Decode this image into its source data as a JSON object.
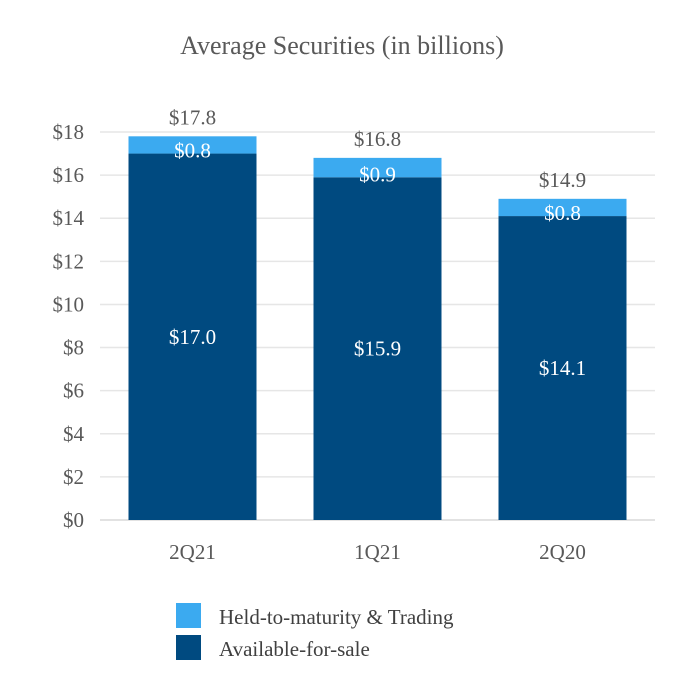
{
  "chart_data": {
    "type": "bar",
    "stacked": true,
    "title": "Average Securities (in billions)",
    "xlabel": "",
    "ylabel": "",
    "categories": [
      "2Q21",
      "1Q21",
      "2Q20"
    ],
    "series": [
      {
        "name": "Available-for-sale",
        "color": "#004a80",
        "values": [
          17.0,
          15.9,
          14.1
        ],
        "labels": [
          "$17.0",
          "$15.9",
          "$14.1"
        ]
      },
      {
        "name": "Held-to-maturity & Trading",
        "color": "#3baaf0",
        "values": [
          0.8,
          0.9,
          0.8
        ],
        "labels": [
          "$0.8",
          "$0.9",
          "$0.8"
        ]
      }
    ],
    "totals": [
      17.8,
      16.8,
      14.9
    ],
    "total_labels": [
      "$17.8",
      "$16.8",
      "$14.9"
    ],
    "ylim": [
      0,
      18
    ],
    "yticks": [
      0,
      2,
      4,
      6,
      8,
      10,
      12,
      14,
      16,
      18
    ],
    "ytick_labels": [
      "$0",
      "$2",
      "$4",
      "$6",
      "$8",
      "$10",
      "$12",
      "$14",
      "$16",
      "$18"
    ],
    "grid": true,
    "legend": {
      "placement": "bottom",
      "entries": [
        "Held-to-maturity & Trading",
        "Available-for-sale"
      ]
    }
  }
}
